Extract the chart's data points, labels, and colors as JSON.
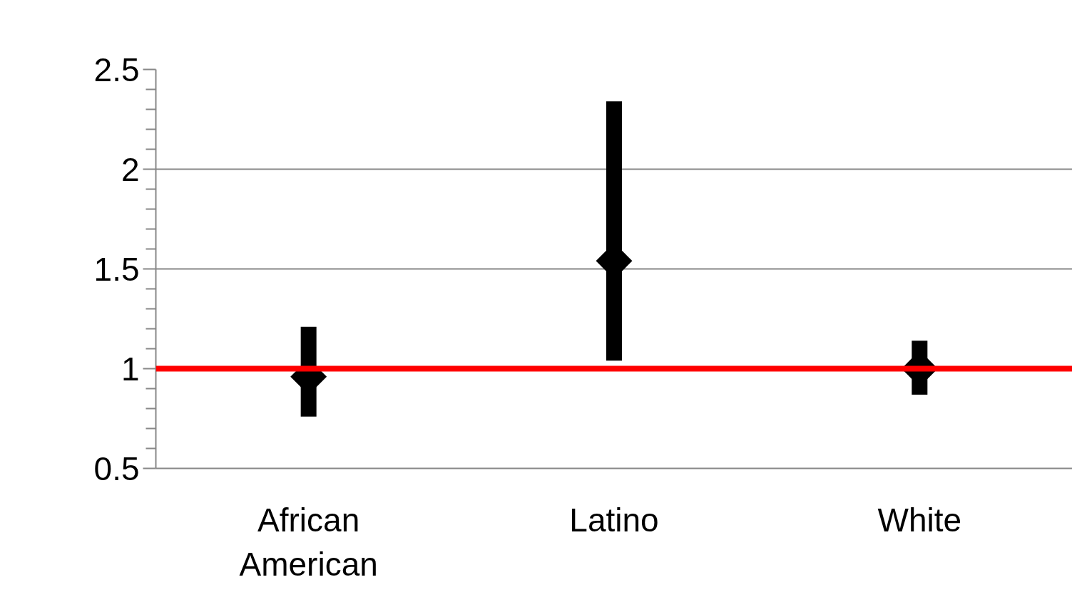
{
  "chart_data": {
    "type": "scatter",
    "categories": [
      "African\nAmerican",
      "Latino",
      "White"
    ],
    "series": [
      {
        "color": "#000000",
        "values": [
          0.96,
          1.54,
          1.0
        ],
        "errors": [
          [
            0.76,
            1.21
          ],
          [
            1.04,
            2.34
          ],
          [
            0.87,
            1.14
          ]
        ]
      }
    ],
    "marker": "diamond",
    "grid": "y",
    "ylim": [
      0.5,
      2.5
    ],
    "yticks": [
      0.5,
      {
        "value": 0.6,
        "label": null
      },
      {
        "value": 0.7,
        "label": null
      },
      {
        "value": 0.8,
        "label": null
      },
      {
        "value": 0.9,
        "label": null
      },
      1,
      {
        "value": 1.1,
        "label": null
      },
      {
        "value": 1.2,
        "label": null
      },
      {
        "value": 1.3,
        "label": null
      },
      {
        "value": 1.4,
        "label": null
      },
      1.5,
      {
        "value": 1.6,
        "label": null
      },
      {
        "value": 1.7,
        "label": null
      },
      {
        "value": 1.8,
        "label": null
      },
      {
        "value": 1.9,
        "label": null
      },
      2,
      {
        "value": 2.1,
        "label": null
      },
      {
        "value": 2.2,
        "label": null
      },
      {
        "value": 2.3,
        "label": null
      },
      {
        "value": 2.4,
        "label": null
      },
      2.5
    ],
    "ref_lines": [
      {
        "axis": "y",
        "value": 1,
        "label": null,
        "color": "#ff0000"
      }
    ]
  }
}
